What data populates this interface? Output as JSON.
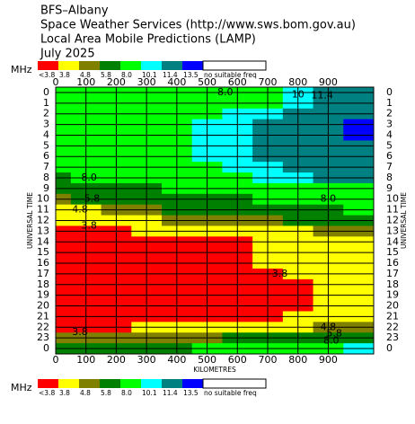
{
  "chart_data": {
    "type": "contour",
    "title_lines": [
      "BFS–Albany",
      "Space Weather Services (http://www.sws.bom.gov.au)",
      "Local Area Mobile Predictions (LAMP)",
      "July 2025"
    ],
    "legend_unit": "MHz",
    "bands": [
      {
        "label": "<3.8",
        "color": "#ff0000",
        "min": null
      },
      {
        "label": "3.8",
        "color": "#ffff00",
        "min": 3.8
      },
      {
        "label": "4.8",
        "color": "#808000",
        "min": 4.8
      },
      {
        "label": "5.8",
        "color": "#008000",
        "min": 5.8
      },
      {
        "label": "8.0",
        "color": "#00ff00",
        "min": 8.0
      },
      {
        "label": "10.1",
        "color": "#00ffff",
        "min": 10.1
      },
      {
        "label": "11.4",
        "color": "#008080",
        "min": 11.4
      },
      {
        "label": "13.5",
        "color": "#0000ff",
        "min": 13.5
      },
      {
        "label": "no suitable freq",
        "color": "#ffffff",
        "min": null
      }
    ],
    "x_label": "KILOMETRES",
    "y_label": "UNIVERSAL TIME",
    "xlim": [
      0,
      1050
    ],
    "ylim": [
      -0.5,
      24.5
    ],
    "xticks": [
      0,
      100,
      200,
      300,
      400,
      500,
      600,
      700,
      800,
      900
    ],
    "yticks": [
      0,
      1,
      2,
      3,
      4,
      5,
      6,
      7,
      8,
      9,
      10,
      11,
      12,
      13,
      14,
      15,
      16,
      17,
      18,
      19,
      20,
      21,
      22,
      23,
      {
        "value": 24,
        "label": "0"
      }
    ],
    "x": [
      0,
      100,
      200,
      300,
      400,
      500,
      600,
      700,
      800,
      900,
      1000
    ],
    "y": [
      0,
      1,
      2,
      3,
      4,
      5,
      6,
      7,
      8,
      9,
      10,
      11,
      12,
      13,
      14,
      15,
      16,
      17,
      18,
      19,
      20,
      21,
      22,
      23,
      24
    ],
    "z": [
      [
        8.5,
        8.5,
        8.6,
        8.7,
        8.8,
        9,
        9.2,
        9.6,
        10.3,
        11.5,
        11.8
      ],
      [
        8.5,
        8.6,
        8.7,
        8.8,
        9,
        9.3,
        9.6,
        10,
        10.5,
        11.6,
        12
      ],
      [
        8.6,
        8.7,
        8.8,
        9,
        9.3,
        9.8,
        10.3,
        10.8,
        11.5,
        12,
        12.5
      ],
      [
        8.6,
        8.7,
        8.9,
        9.1,
        9.5,
        10.2,
        11,
        11.6,
        12.2,
        12.8,
        13.6
      ],
      [
        8.6,
        8.7,
        8.9,
        9.1,
        9.5,
        10.3,
        11.2,
        11.8,
        12.4,
        13,
        13.8
      ],
      [
        8.6,
        8.7,
        8.9,
        9.1,
        9.5,
        10.3,
        11.2,
        11.8,
        12.3,
        12.9,
        13.4
      ],
      [
        8.5,
        8.6,
        8.8,
        9,
        9.4,
        10.2,
        11,
        11.6,
        12,
        12.5,
        12.8
      ],
      [
        8.3,
        8.4,
        8.6,
        8.8,
        9.2,
        9.8,
        10.5,
        11.2,
        11.7,
        12,
        12.2
      ],
      [
        7.9,
        8.1,
        8.3,
        8.5,
        8.8,
        9.2,
        9.7,
        10.2,
        10.8,
        11.5,
        11.8
      ],
      [
        6.5,
        6.8,
        7.2,
        7.6,
        8.1,
        8.5,
        8.9,
        9.2,
        9.5,
        9.8,
        10
      ],
      [
        5.4,
        5.9,
        6.3,
        6.7,
        7.1,
        7.5,
        7.8,
        8.1,
        8.4,
        8.6,
        8.7
      ],
      [
        4.2,
        4.6,
        5.0,
        5.4,
        5.8,
        6.2,
        6.6,
        7,
        7.4,
        7.7,
        8
      ],
      [
        3.9,
        4.0,
        4.2,
        4.5,
        4.8,
        5.0,
        5.3,
        5.6,
        5.9,
        6.2,
        6.5
      ],
      [
        3.5,
        3.6,
        3.7,
        3.8,
        4.0,
        4.1,
        4.3,
        4.5,
        4.7,
        4.8,
        4.9
      ],
      [
        3.0,
        3.1,
        3.2,
        3.3,
        3.4,
        3.5,
        3.6,
        3.9,
        4.1,
        4.2,
        4.3
      ],
      [
        2.9,
        3.0,
        3.1,
        3.2,
        3.3,
        3.4,
        3.6,
        3.9,
        4.0,
        4.1,
        4.2
      ],
      [
        2.9,
        3.0,
        3.1,
        3.2,
        3.3,
        3.4,
        3.6,
        3.9,
        4.0,
        4.1,
        4.2
      ],
      [
        2.9,
        3.0,
        3.1,
        3.2,
        3.3,
        3.4,
        3.5,
        3.7,
        3.9,
        4.0,
        4.1
      ],
      [
        2.8,
        2.9,
        3,
        3.1,
        3.2,
        3.3,
        3.4,
        3.6,
        3.7,
        3.9,
        4.0
      ],
      [
        2.8,
        2.9,
        3,
        3.1,
        3.2,
        3.3,
        3.4,
        3.5,
        3.7,
        3.9,
        4.0
      ],
      [
        2.8,
        2.9,
        3,
        3.1,
        3.2,
        3.3,
        3.4,
        3.5,
        3.7,
        3.9,
        4.0
      ],
      [
        2.9,
        3,
        3.1,
        3.2,
        3.3,
        3.4,
        3.5,
        3.6,
        3.9,
        4.1,
        4.2
      ],
      [
        3.5,
        3.6,
        3.7,
        3.8,
        3.9,
        4.0,
        4.1,
        4.3,
        4.6,
        4.8,
        5.0
      ],
      [
        4.9,
        5.0,
        5.1,
        5.3,
        5.5,
        5.7,
        5.9,
        6.2,
        6.6,
        7.0,
        7.4
      ],
      [
        7.0,
        7.2,
        7.4,
        7.6,
        7.9,
        8.1,
        8.3,
        8.6,
        9.0,
        9.6,
        10.2
      ]
    ],
    "annotations": [
      {
        "text": "8.0",
        "x": 560,
        "y": 0
      },
      {
        "text": "10",
        "x": 800,
        "y": 0.2
      },
      {
        "text": "11.4",
        "x": 880,
        "y": 0.3
      },
      {
        "text": "8.0",
        "x": 110,
        "y": 8
      },
      {
        "text": "5.8",
        "x": 120,
        "y": 10
      },
      {
        "text": "4.8",
        "x": 80,
        "y": 11
      },
      {
        "text": "3.8",
        "x": 110,
        "y": 12.5
      },
      {
        "text": "8.0",
        "x": 900,
        "y": 10
      },
      {
        "text": "3.8",
        "x": 740,
        "y": 17
      },
      {
        "text": "3.8",
        "x": 80,
        "y": 22.5
      },
      {
        "text": "4.8",
        "x": 900,
        "y": 22
      },
      {
        "text": "5.8",
        "x": 920,
        "y": 22.6
      },
      {
        "text": "8.0",
        "x": 910,
        "y": 23.3
      }
    ]
  }
}
